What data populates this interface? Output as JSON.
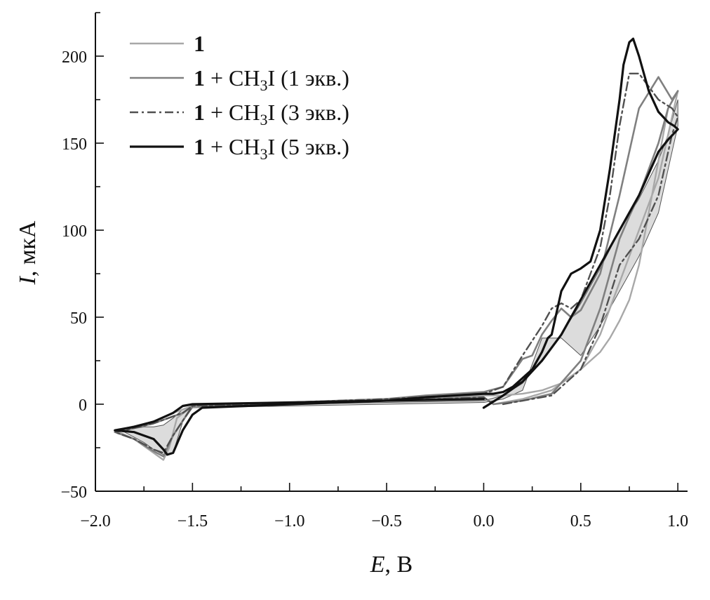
{
  "chart_data": {
    "type": "line",
    "xlabel": {
      "var": "E",
      "unit": ", В"
    },
    "ylabel": {
      "var": "I",
      "unit": ", мкА"
    },
    "xlim": [
      -2.0,
      1.05
    ],
    "ylim": [
      -50,
      225
    ],
    "x_ticks": [
      -2.0,
      -1.5,
      -1.0,
      -0.5,
      0.0,
      0.5,
      1.0
    ],
    "x_tick_labels": [
      "−2.0",
      "−1.5",
      "−1.0",
      "−0.5",
      "0.0",
      "0.5",
      "1.0"
    ],
    "y_ticks": [
      -50,
      0,
      50,
      100,
      150,
      200
    ],
    "y_tick_labels": [
      "−50",
      "0",
      "50",
      "100",
      "150",
      "200"
    ],
    "grid": false,
    "legend_position": "top-left",
    "series": [
      {
        "name": "1",
        "legend": {
          "bold": "1",
          "rest": "",
          "sub": "",
          "tail": ""
        },
        "color": "#a8a8a8",
        "dash": "solid",
        "width": 2.4,
        "x": [
          0.05,
          0.2,
          0.35,
          0.5,
          0.6,
          0.7,
          0.8,
          0.9,
          1.0,
          0.95,
          0.9,
          0.85,
          0.8,
          0.75,
          0.7,
          0.65,
          0.6,
          0.5,
          0.4,
          0.3,
          0.2,
          0.1,
          0.0,
          -0.5,
          -1.0,
          -1.5,
          -1.58,
          -1.62,
          -1.65,
          -1.7,
          -1.8,
          -1.9,
          -1.85,
          -1.7,
          -1.6,
          -1.5,
          -1.0,
          -0.5,
          0.0,
          0.05
        ],
        "y": [
          0,
          3,
          8,
          20,
          40,
          70,
          100,
          130,
          180,
          170,
          140,
          110,
          80,
          60,
          48,
          38,
          30,
          20,
          12,
          8,
          6,
          5,
          5,
          3,
          1,
          -1,
          -8,
          -25,
          -32,
          -28,
          -20,
          -15,
          -14,
          -10,
          -5,
          -1,
          0,
          2,
          4,
          0
        ]
      },
      {
        "name": "1 + CH3I (1 экв.)",
        "legend": {
          "bold": "1",
          "rest": " + CH",
          "sub": "3",
          "tail": "I (1 экв.)"
        },
        "color": "#808080",
        "dash": "solid",
        "width": 2.6,
        "x": [
          0.05,
          0.2,
          0.35,
          0.5,
          0.6,
          0.7,
          0.75,
          0.8,
          0.85,
          0.9,
          0.95,
          1.0,
          0.97,
          0.9,
          0.8,
          0.7,
          0.6,
          0.5,
          0.45,
          0.4,
          0.35,
          0.3,
          0.25,
          0.2,
          0.15,
          0.1,
          0.0,
          -0.3,
          -0.5,
          -1.0,
          -1.5,
          -1.6,
          -1.65,
          -1.7,
          -1.8,
          -1.9,
          -1.85,
          -1.7,
          -1.55,
          -1.5,
          -1.0,
          -0.5,
          0.0,
          0.05
        ],
        "y": [
          0,
          2,
          6,
          25,
          55,
          95,
          108,
          120,
          135,
          150,
          170,
          180,
          175,
          188,
          170,
          120,
          75,
          54,
          50,
          55,
          48,
          40,
          28,
          26,
          18,
          10,
          7,
          5,
          3,
          1,
          -1,
          -18,
          -30,
          -27,
          -20,
          -16,
          -15,
          -11,
          -5,
          -1,
          0,
          2,
          4,
          0
        ]
      },
      {
        "name": "1 + CH3I (3 экв.)",
        "legend": {
          "bold": "1",
          "rest": " + CH",
          "sub": "3",
          "tail": "I (3 экв.)"
        },
        "color": "#505050",
        "dash": "12,5,3,5",
        "width": 2.4,
        "x": [
          0.1,
          0.2,
          0.35,
          0.5,
          0.6,
          0.7,
          0.8,
          0.9,
          0.97,
          1.0,
          0.97,
          0.9,
          0.8,
          0.75,
          0.7,
          0.65,
          0.6,
          0.5,
          0.45,
          0.4,
          0.35,
          0.3,
          0.2,
          0.1,
          0.0,
          -0.5,
          -1.0,
          -1.5,
          -1.6,
          -1.65,
          -1.7,
          -1.8,
          -1.9,
          -1.85,
          -1.7,
          -1.55,
          -1.5,
          -1.0,
          -0.5,
          0.0,
          0.05
        ],
        "y": [
          0,
          2,
          5,
          20,
          45,
          80,
          95,
          120,
          155,
          165,
          170,
          175,
          190,
          190,
          160,
          120,
          90,
          60,
          55,
          58,
          55,
          45,
          28,
          10,
          6,
          3,
          1,
          -1,
          -18,
          -28,
          -26,
          -20,
          -16,
          -15,
          -11,
          -5,
          -1,
          0,
          2,
          4,
          0
        ]
      },
      {
        "name": "1 + CH3I (5 экв.)",
        "legend": {
          "bold": "1",
          "rest": " + CH",
          "sub": "3",
          "tail": "I (5 экв.)"
        },
        "color": "#111111",
        "dash": "solid",
        "width": 3.2,
        "x": [
          0.0,
          0.1,
          0.2,
          0.3,
          0.4,
          0.5,
          0.6,
          0.7,
          0.8,
          0.9,
          0.95,
          1.0,
          0.98,
          0.95,
          0.9,
          0.85,
          0.8,
          0.77,
          0.75,
          0.72,
          0.7,
          0.65,
          0.6,
          0.55,
          0.5,
          0.45,
          0.4,
          0.35,
          0.33,
          0.3,
          0.25,
          0.2,
          0.15,
          0.1,
          0.05,
          0.0,
          -0.3,
          -0.5,
          -1.0,
          -1.45,
          -1.5,
          -1.55,
          -1.6,
          -1.63,
          -1.65,
          -1.7,
          -1.8,
          -1.9,
          -1.85,
          -1.8,
          -1.7,
          -1.6,
          -1.55,
          -1.5,
          -1.0,
          -0.5,
          0.0
        ],
        "y": [
          -2,
          5,
          13,
          25,
          40,
          60,
          80,
          100,
          120,
          145,
          152,
          158,
          160,
          162,
          168,
          180,
          200,
          210,
          208,
          195,
          175,
          135,
          100,
          82,
          78,
          75,
          65,
          40,
          38,
          30,
          20,
          15,
          10,
          7,
          6,
          6,
          4,
          2,
          0,
          -2,
          -6,
          -15,
          -28,
          -29,
          -26,
          -20,
          -16,
          -15,
          -14,
          -13,
          -10,
          -5,
          -1,
          0,
          1,
          2,
          3
        ]
      }
    ],
    "shaded_area": {
      "color": "#dcdcdc",
      "upper": {
        "x": [
          -1.9,
          -1.85,
          -1.8,
          -1.75,
          -1.7,
          -1.65,
          -1.6,
          -1.55,
          -1.5,
          -1.0,
          -0.5,
          0.0,
          0.1,
          0.2,
          0.3,
          0.4,
          0.5,
          0.6,
          0.7,
          0.8,
          0.9,
          0.95,
          1.0
        ],
        "y": [
          -15,
          -14,
          -14,
          -13,
          -13,
          -12,
          -8,
          -3,
          -1,
          0,
          1,
          2,
          5,
          12,
          25,
          40,
          58,
          78,
          100,
          118,
          140,
          155,
          175
        ]
      },
      "lower": {
        "x": [
          -1.9,
          -1.85,
          -1.8,
          -1.75,
          -1.7,
          -1.65,
          -1.6,
          -1.55,
          -1.5,
          -1.0,
          -0.5,
          0.0,
          0.1,
          0.2,
          0.3,
          0.4,
          0.5,
          0.6,
          0.7,
          0.8,
          0.9,
          0.95,
          1.0
        ],
        "y": [
          -15,
          -16,
          -19,
          -22,
          -26,
          -29,
          -28,
          -10,
          -2,
          -1,
          0,
          1,
          3,
          8,
          38,
          38,
          28,
          45,
          65,
          85,
          110,
          135,
          160
        ]
      }
    }
  }
}
